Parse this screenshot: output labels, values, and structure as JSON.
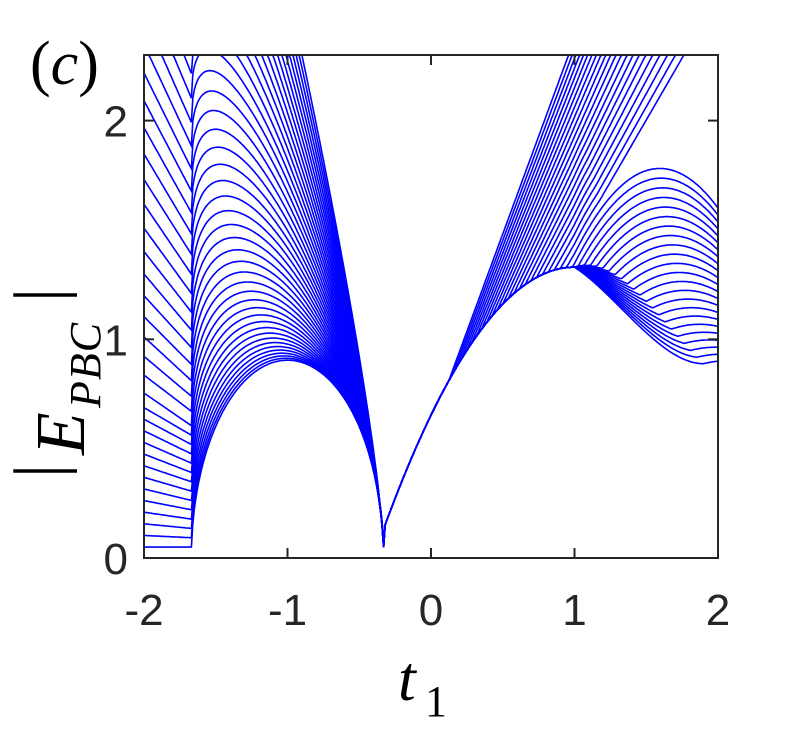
{
  "panel_label": "(c)",
  "chart_data": {
    "type": "line",
    "xlabel": "t1",
    "ylabel": "|E_PBC|",
    "xlim": [
      -2,
      2
    ],
    "ylim": [
      0,
      2.3
    ],
    "xticks": [
      "-2",
      "-1",
      "0",
      "1",
      "2"
    ],
    "yticks": [
      "0",
      "1",
      "2"
    ],
    "grid": false,
    "series_color": "#0000ff",
    "series_count": 45,
    "description_of_values": "Family of periodic-boundary spectrum magnitudes |E| versus t1; curves share cusps near t1=-1.67 (outer curves only), a collective cusp near t1=-0.33, and an envelope crossing near t1=0.33 with max 1.33 at t1=1",
    "cusps": [
      -1.67,
      -0.33
    ],
    "envelope_max": {
      "t1": 1.0,
      "value": 1.33
    },
    "right_edge_range": [
      0.9,
      2.3
    ]
  }
}
